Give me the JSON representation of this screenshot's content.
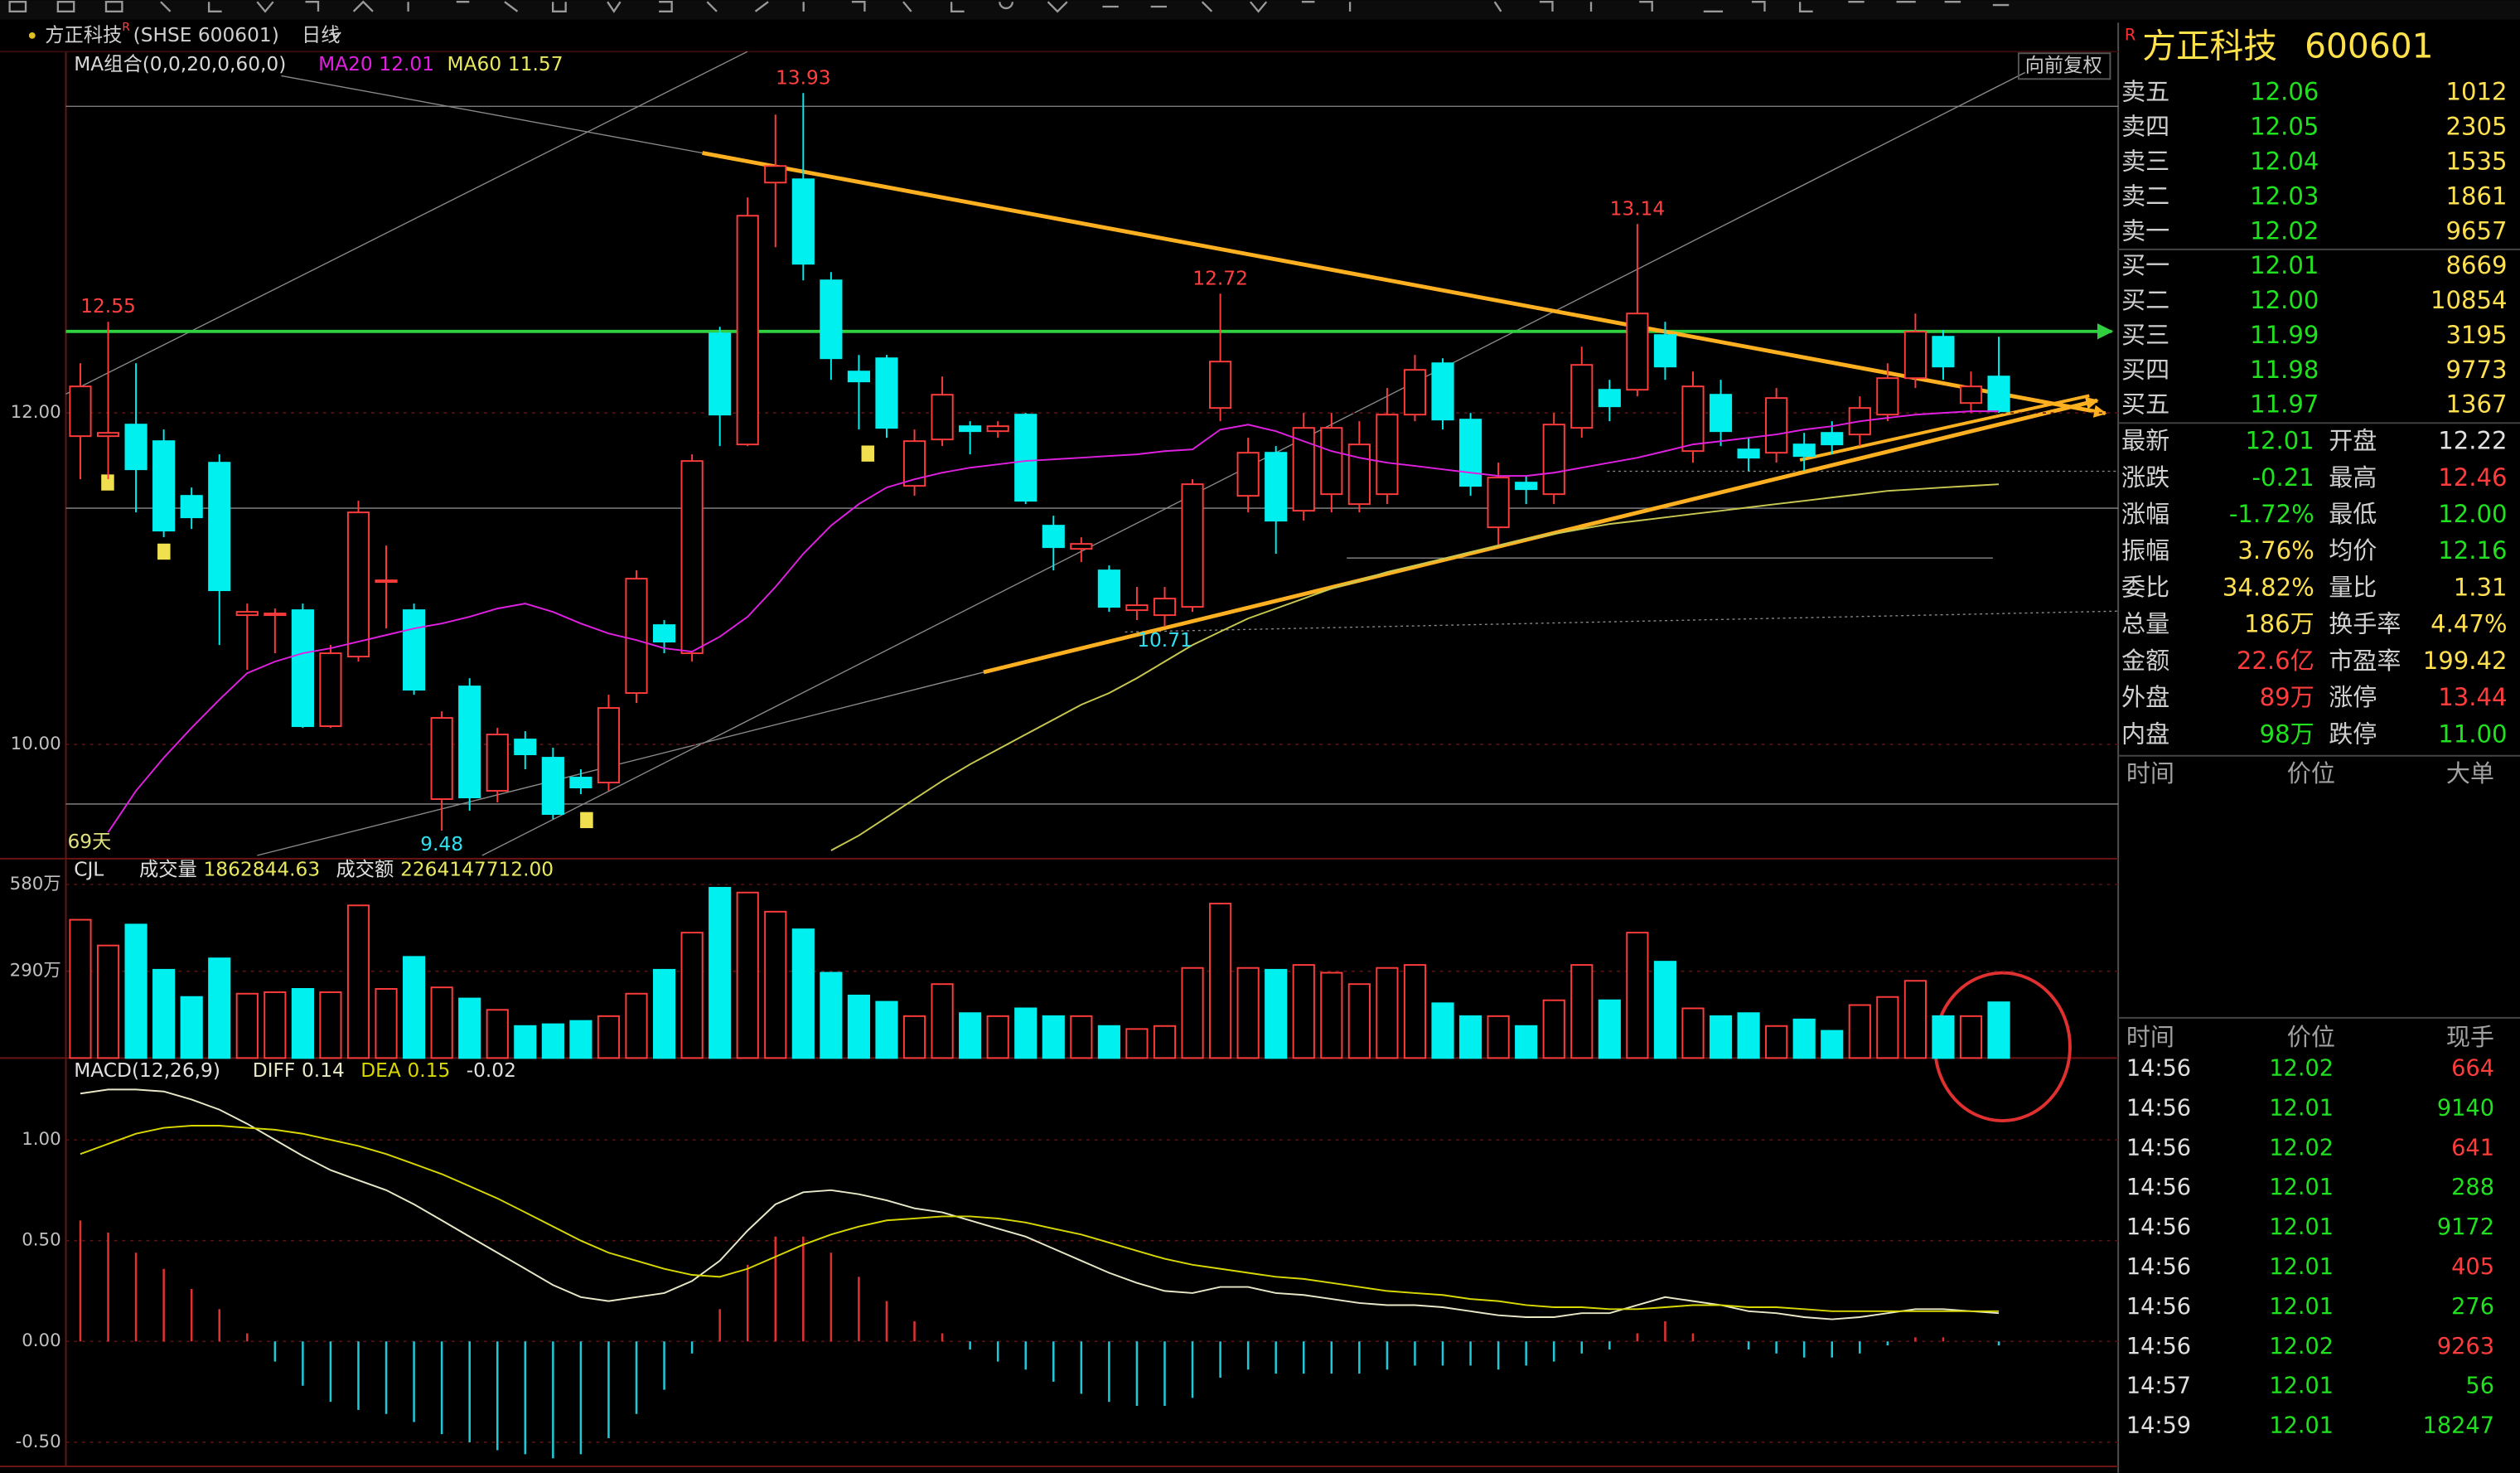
{
  "header": {
    "name": "方正科技",
    "badge": "R",
    "code": "(SHSE 600601)",
    "period": "日线"
  },
  "chart_data": [
    {
      "type": "candlestick",
      "title": "MA组合(0,0,20,0,60,0)",
      "adjust": "向前复权",
      "days": "69天",
      "ylim": [
        9.33,
        14.18
      ],
      "yticks": [
        {
          "value": 12,
          "label": "12.00"
        },
        {
          "value": 10,
          "label": "10.00"
        }
      ],
      "up_color": "#ff3c3c",
      "down_color": "#00f0f0",
      "open": [
        11.86,
        11.86,
        11.93,
        11.83,
        11.5,
        11.7,
        10.78,
        10.78,
        10.81,
        10.11,
        10.53,
        10.98,
        10.81,
        9.67,
        10.35,
        9.72,
        10.03,
        9.92,
        9.8,
        9.77,
        10.31,
        10.72,
        10.55,
        12.48,
        11.81,
        13.39,
        13.41,
        12.8,
        12.25,
        12.33,
        11.56,
        11.84,
        11.92,
        11.89,
        11.99,
        11.32,
        11.18,
        11.05,
        10.81,
        10.78,
        10.83,
        12.03,
        11.5,
        11.76,
        11.41,
        11.51,
        11.45,
        11.51,
        11.99,
        12.3,
        11.96,
        11.31,
        11.58,
        11.51,
        11.91,
        12.14,
        12.14,
        12.47,
        11.77,
        12.11,
        11.78,
        11.76,
        11.81,
        11.88,
        11.87,
        11.99,
        12.21,
        12.46,
        12.06,
        12.22
      ],
      "high": [
        12.3,
        12.55,
        12.3,
        11.9,
        11.55,
        11.75,
        10.85,
        10.82,
        10.85,
        10.6,
        11.47,
        11.2,
        10.85,
        10.2,
        10.4,
        10.1,
        10.08,
        9.98,
        9.85,
        10.3,
        11.05,
        10.75,
        11.75,
        12.52,
        13.3,
        13.8,
        13.93,
        12.85,
        12.35,
        12.35,
        11.9,
        12.22,
        11.95,
        11.95,
        12.0,
        11.38,
        11.25,
        11.08,
        10.95,
        10.95,
        11.6,
        12.72,
        11.85,
        11.8,
        12.0,
        12.0,
        11.95,
        12.15,
        12.35,
        12.33,
        12.0,
        11.7,
        11.62,
        12.0,
        12.4,
        12.2,
        13.14,
        12.55,
        12.25,
        12.2,
        11.85,
        12.15,
        11.88,
        11.95,
        12.1,
        12.3,
        12.6,
        12.5,
        12.25,
        12.46
      ],
      "low": [
        11.6,
        11.6,
        11.4,
        11.25,
        11.3,
        10.6,
        10.45,
        10.55,
        10.1,
        10.1,
        10.5,
        10.7,
        10.3,
        9.48,
        9.6,
        9.65,
        9.85,
        9.55,
        9.7,
        9.72,
        10.25,
        10.55,
        10.5,
        11.8,
        11.8,
        13.0,
        12.8,
        12.2,
        11.9,
        11.85,
        11.5,
        11.8,
        11.75,
        11.85,
        11.45,
        11.05,
        11.1,
        10.8,
        10.75,
        10.71,
        10.8,
        11.95,
        11.4,
        11.15,
        11.35,
        11.4,
        11.4,
        11.45,
        11.95,
        11.9,
        11.5,
        11.2,
        11.45,
        11.45,
        11.85,
        11.95,
        12.1,
        12.2,
        11.7,
        11.8,
        11.65,
        11.7,
        11.65,
        11.75,
        11.8,
        11.95,
        12.15,
        12.2,
        12.0,
        12.0
      ],
      "close": [
        12.16,
        11.88,
        11.66,
        11.29,
        11.37,
        10.93,
        10.8,
        10.79,
        10.11,
        10.55,
        11.4,
        10.99,
        10.33,
        10.16,
        9.68,
        10.06,
        9.94,
        9.58,
        9.74,
        10.22,
        11.0,
        10.62,
        11.71,
        11.99,
        13.19,
        13.49,
        12.9,
        12.33,
        12.19,
        11.91,
        11.83,
        12.11,
        11.89,
        11.92,
        11.47,
        11.19,
        11.21,
        10.83,
        10.84,
        10.88,
        11.57,
        12.31,
        11.76,
        11.35,
        11.91,
        11.91,
        11.81,
        11.99,
        12.26,
        11.96,
        11.56,
        11.61,
        11.54,
        11.93,
        12.29,
        12.04,
        12.6,
        12.28,
        12.16,
        11.89,
        11.73,
        12.09,
        11.74,
        11.81,
        12.03,
        12.21,
        12.49,
        12.28,
        12.16,
        12.01
      ],
      "max_labels": [
        12.55,
        13.93,
        12.72,
        13.14
      ],
      "min_labels": [
        9.48,
        10.71
      ],
      "series": [
        {
          "name": "MA20",
          "color": "#e020e0",
          "values": [
            null,
            9.47,
            9.72,
            9.92,
            10.1,
            10.27,
            10.43,
            10.5,
            10.55,
            10.58,
            10.62,
            10.66,
            10.7,
            10.73,
            10.77,
            10.82,
            10.85,
            10.8,
            10.73,
            10.67,
            10.63,
            10.58,
            10.56,
            10.65,
            10.77,
            10.95,
            11.15,
            11.32,
            11.45,
            11.55,
            11.6,
            11.64,
            11.67,
            11.69,
            11.71,
            11.72,
            11.73,
            11.74,
            11.75,
            11.77,
            11.78,
            11.9,
            11.93,
            11.89,
            11.83,
            11.77,
            11.73,
            11.7,
            11.68,
            11.66,
            11.64,
            11.62,
            11.62,
            11.64,
            11.67,
            11.7,
            11.73,
            11.77,
            11.81,
            11.83,
            11.85,
            11.87,
            11.9,
            11.92,
            11.95,
            11.97,
            11.99,
            12.0,
            12.01,
            12.01
          ]
        },
        {
          "name": "MA60",
          "color": "#c8c850",
          "values": [
            null,
            null,
            null,
            null,
            null,
            null,
            null,
            null,
            null,
            null,
            null,
            null,
            null,
            null,
            null,
            null,
            null,
            null,
            null,
            null,
            null,
            null,
            null,
            null,
            null,
            null,
            null,
            9.36,
            9.45,
            9.56,
            9.67,
            9.78,
            9.88,
            9.97,
            10.06,
            10.15,
            10.24,
            10.31,
            10.4,
            10.5,
            10.6,
            10.68,
            10.76,
            10.82,
            10.88,
            10.94,
            10.99,
            11.04,
            11.08,
            11.12,
            11.16,
            11.2,
            11.24,
            11.27,
            11.3,
            11.33,
            11.35,
            11.37,
            11.39,
            11.41,
            11.43,
            11.45,
            11.47,
            11.49,
            11.51,
            11.53,
            11.54,
            11.55,
            11.56,
            11.57
          ]
        }
      ]
    },
    {
      "type": "bar",
      "title": "CJL",
      "volume_label": "成交量",
      "volume": 1862844.63,
      "amount_label": "成交额",
      "amount": "2264147712.00",
      "ylim": [
        0,
        607
      ],
      "yticks": [
        {
          "value": 580,
          "label": "580万"
        },
        {
          "value": 290,
          "label": "290万"
        }
      ],
      "values": [
        462,
        376,
        446,
        295,
        204,
        333,
        215,
        220,
        231,
        220,
        510,
        231,
        338,
        236,
        199,
        161,
        107,
        113,
        124,
        140,
        215,
        295,
        419,
        569,
        553,
        489,
        430,
        285,
        209,
        188,
        140,
        247,
        150,
        140,
        166,
        140,
        140,
        107,
        97,
        107,
        301,
        516,
        301,
        295,
        311,
        285,
        247,
        301,
        311,
        183,
        140,
        140,
        107,
        193,
        311,
        193,
        419,
        322,
        166,
        140,
        150,
        107,
        129,
        91,
        177,
        204,
        258,
        140,
        140,
        186.28
      ]
    },
    {
      "type": "macd",
      "title": "MACD(12,26,9)",
      "ylim": [
        -0.62,
        1.39
      ],
      "yticks": [
        {
          "value": 1,
          "label": "1.00"
        },
        {
          "value": 0.5,
          "label": "0.50"
        },
        {
          "value": 0,
          "label": "0.00"
        },
        {
          "value": -0.5,
          "label": "-0.50"
        }
      ],
      "series": [
        {
          "name": "DIFF",
          "color": "#e8e8c8",
          "values": [
            1.23,
            1.25,
            1.25,
            1.24,
            1.2,
            1.15,
            1.08,
            1.0,
            0.92,
            0.85,
            0.8,
            0.75,
            0.68,
            0.6,
            0.52,
            0.44,
            0.36,
            0.28,
            0.22,
            0.2,
            0.22,
            0.24,
            0.3,
            0.4,
            0.55,
            0.68,
            0.74,
            0.75,
            0.73,
            0.7,
            0.66,
            0.64,
            0.6,
            0.56,
            0.52,
            0.46,
            0.4,
            0.34,
            0.29,
            0.25,
            0.24,
            0.27,
            0.27,
            0.24,
            0.23,
            0.21,
            0.19,
            0.18,
            0.18,
            0.17,
            0.15,
            0.13,
            0.12,
            0.12,
            0.14,
            0.14,
            0.18,
            0.22,
            0.2,
            0.18,
            0.15,
            0.14,
            0.12,
            0.11,
            0.12,
            0.14,
            0.16,
            0.16,
            0.15,
            0.14
          ]
        },
        {
          "name": "DEA",
          "color": "#d8d800",
          "values": [
            0.93,
            0.98,
            1.03,
            1.06,
            1.07,
            1.07,
            1.06,
            1.05,
            1.03,
            1.0,
            0.97,
            0.93,
            0.88,
            0.83,
            0.77,
            0.71,
            0.64,
            0.57,
            0.5,
            0.44,
            0.4,
            0.36,
            0.33,
            0.32,
            0.36,
            0.42,
            0.48,
            0.53,
            0.57,
            0.6,
            0.61,
            0.62,
            0.62,
            0.61,
            0.59,
            0.56,
            0.53,
            0.49,
            0.45,
            0.41,
            0.38,
            0.36,
            0.34,
            0.32,
            0.31,
            0.29,
            0.27,
            0.25,
            0.24,
            0.23,
            0.21,
            0.2,
            0.18,
            0.17,
            0.17,
            0.16,
            0.16,
            0.17,
            0.18,
            0.18,
            0.17,
            0.17,
            0.16,
            0.15,
            0.15,
            0.15,
            0.15,
            0.15,
            0.15,
            0.15
          ]
        }
      ],
      "bars": [
        0.6,
        0.54,
        0.44,
        0.36,
        0.26,
        0.16,
        0.04,
        -0.1,
        -0.22,
        -0.3,
        -0.34,
        -0.36,
        -0.4,
        -0.46,
        -0.5,
        -0.54,
        -0.56,
        -0.58,
        -0.56,
        -0.48,
        -0.36,
        -0.24,
        -0.06,
        0.16,
        0.38,
        0.52,
        0.52,
        0.44,
        0.32,
        0.2,
        0.1,
        0.04,
        -0.04,
        -0.1,
        -0.14,
        -0.2,
        -0.26,
        -0.3,
        -0.32,
        -0.32,
        -0.28,
        -0.18,
        -0.14,
        -0.16,
        -0.16,
        -0.16,
        -0.16,
        -0.14,
        -0.12,
        -0.12,
        -0.12,
        -0.14,
        -0.12,
        -0.1,
        -0.06,
        -0.04,
        0.04,
        0.1,
        0.04,
        0,
        -0.04,
        -0.06,
        -0.08,
        -0.08,
        -0.06,
        -0.02,
        0.02,
        0.02,
        0,
        -0.02
      ]
    }
  ],
  "quote": {
    "badge": "R",
    "name": "方正科技",
    "code": "600601",
    "asks": [
      {
        "label": "卖五",
        "price": "12.06",
        "volume": "1012"
      },
      {
        "label": "卖四",
        "price": "12.05",
        "volume": "2305"
      },
      {
        "label": "卖三",
        "price": "12.04",
        "volume": "1535"
      },
      {
        "label": "卖二",
        "price": "12.03",
        "volume": "1861"
      },
      {
        "label": "卖一",
        "price": "12.02",
        "volume": "9657"
      }
    ],
    "bids": [
      {
        "label": "买一",
        "price": "12.01",
        "volume": "8669"
      },
      {
        "label": "买二",
        "price": "12.00",
        "volume": "10854"
      },
      {
        "label": "买三",
        "price": "11.99",
        "volume": "3195"
      },
      {
        "label": "买四",
        "price": "11.98",
        "volume": "9773"
      },
      {
        "label": "买五",
        "price": "11.97",
        "volume": "1367"
      }
    ],
    "stats": [
      [
        {
          "label": "最新",
          "value": "12.01",
          "color": "#20e020"
        },
        {
          "label": "开盘",
          "value": "12.22",
          "color": "#e0e0e0"
        }
      ],
      [
        {
          "label": "涨跌",
          "value": "-0.21",
          "color": "#20e020"
        },
        {
          "label": "最高",
          "value": "12.46",
          "color": "#ff3c3c"
        }
      ],
      [
        {
          "label": "涨幅",
          "value": "-1.72%",
          "color": "#20e020"
        },
        {
          "label": "最低",
          "value": "12.00",
          "color": "#20e020"
        }
      ],
      [
        {
          "label": "振幅",
          "value": "3.76%",
          "color": "#ffe050"
        },
        {
          "label": "均价",
          "value": "12.16",
          "color": "#20e020"
        }
      ],
      [
        {
          "label": "委比",
          "value": "34.82%",
          "color": "#ffe050"
        },
        {
          "label": "量比",
          "value": "1.31",
          "color": "#ffe050"
        }
      ],
      [
        {
          "label": "总量",
          "value": "186万",
          "color": "#ffe050"
        },
        {
          "label": "换手率",
          "value": "4.47%",
          "color": "#ffe050"
        }
      ],
      [
        {
          "label": "金额",
          "value": "22.6亿",
          "color": "#ff3c3c"
        },
        {
          "label": "市盈率",
          "value": "199.42",
          "color": "#ffe050"
        }
      ],
      [
        {
          "label": "外盘",
          "value": "89万",
          "color": "#ff3c3c"
        },
        {
          "label": "涨停",
          "value": "13.44",
          "color": "#ff3c3c"
        }
      ],
      [
        {
          "label": "内盘",
          "value": "98万",
          "color": "#20e020"
        },
        {
          "label": "跌停",
          "value": "11.00",
          "color": "#20e020"
        }
      ]
    ],
    "big_orders": {
      "headers": [
        "时间",
        "价位",
        "大单"
      ]
    },
    "trades": {
      "headers": [
        "时间",
        "价位",
        "现手"
      ],
      "rows": [
        {
          "time": "14:56",
          "price": "12.02",
          "volume": "664",
          "color": "#ff3c3c"
        },
        {
          "time": "14:56",
          "price": "12.01",
          "volume": "9140",
          "color": "#20e020"
        },
        {
          "time": "14:56",
          "price": "12.02",
          "volume": "641",
          "color": "#ff3c3c"
        },
        {
          "time": "14:56",
          "price": "12.01",
          "volume": "288",
          "color": "#20e020"
        },
        {
          "time": "14:56",
          "price": "12.01",
          "volume": "9172",
          "color": "#20e020"
        },
        {
          "time": "14:56",
          "price": "12.01",
          "volume": "405",
          "color": "#ff3c3c"
        },
        {
          "time": "14:56",
          "price": "12.01",
          "volume": "276",
          "color": "#20e020"
        },
        {
          "time": "14:56",
          "price": "12.02",
          "volume": "9263",
          "color": "#ff3c3c"
        },
        {
          "time": "14:57",
          "price": "12.01",
          "volume": "56",
          "color": "#20e020"
        },
        {
          "time": "14:59",
          "price": "12.01",
          "volume": "18247",
          "color": "#20e020"
        }
      ]
    }
  }
}
